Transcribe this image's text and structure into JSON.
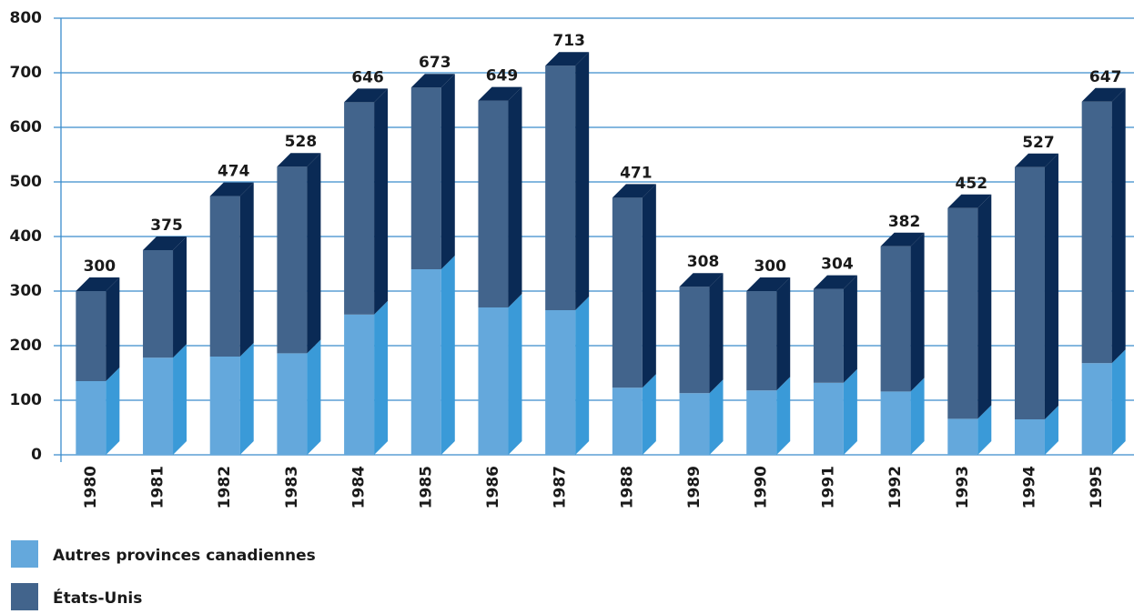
{
  "chart_data": {
    "type": "bar3d_stacked",
    "categories": [
      "1980",
      "1981",
      "1982",
      "1983",
      "1984",
      "1985",
      "1986",
      "1987",
      "1988",
      "1989",
      "1990",
      "1991",
      "1992",
      "1993",
      "1994",
      "1995"
    ],
    "series": [
      {
        "name": "Autres provinces canadiennes",
        "color": "#64a8dc",
        "side_color": "#3a9ad8",
        "values": [
          135,
          178,
          180,
          186,
          257,
          340,
          270,
          265,
          123,
          113,
          118,
          132,
          116,
          66,
          65,
          168
        ]
      },
      {
        "name": "États-Unis",
        "color": "#42648c",
        "side_color": "#0a2a55",
        "values": [
          165,
          197,
          294,
          342,
          389,
          333,
          379,
          448,
          348,
          195,
          182,
          172,
          266,
          386,
          462,
          479
        ]
      }
    ],
    "totals": [
      300,
      375,
      474,
      528,
      646,
      673,
      649,
      713,
      471,
      308,
      300,
      304,
      382,
      452,
      527,
      647
    ],
    "ylim": [
      0,
      800
    ],
    "yticks": [
      0,
      100,
      200,
      300,
      400,
      500,
      600,
      700,
      800
    ],
    "grid": true
  }
}
